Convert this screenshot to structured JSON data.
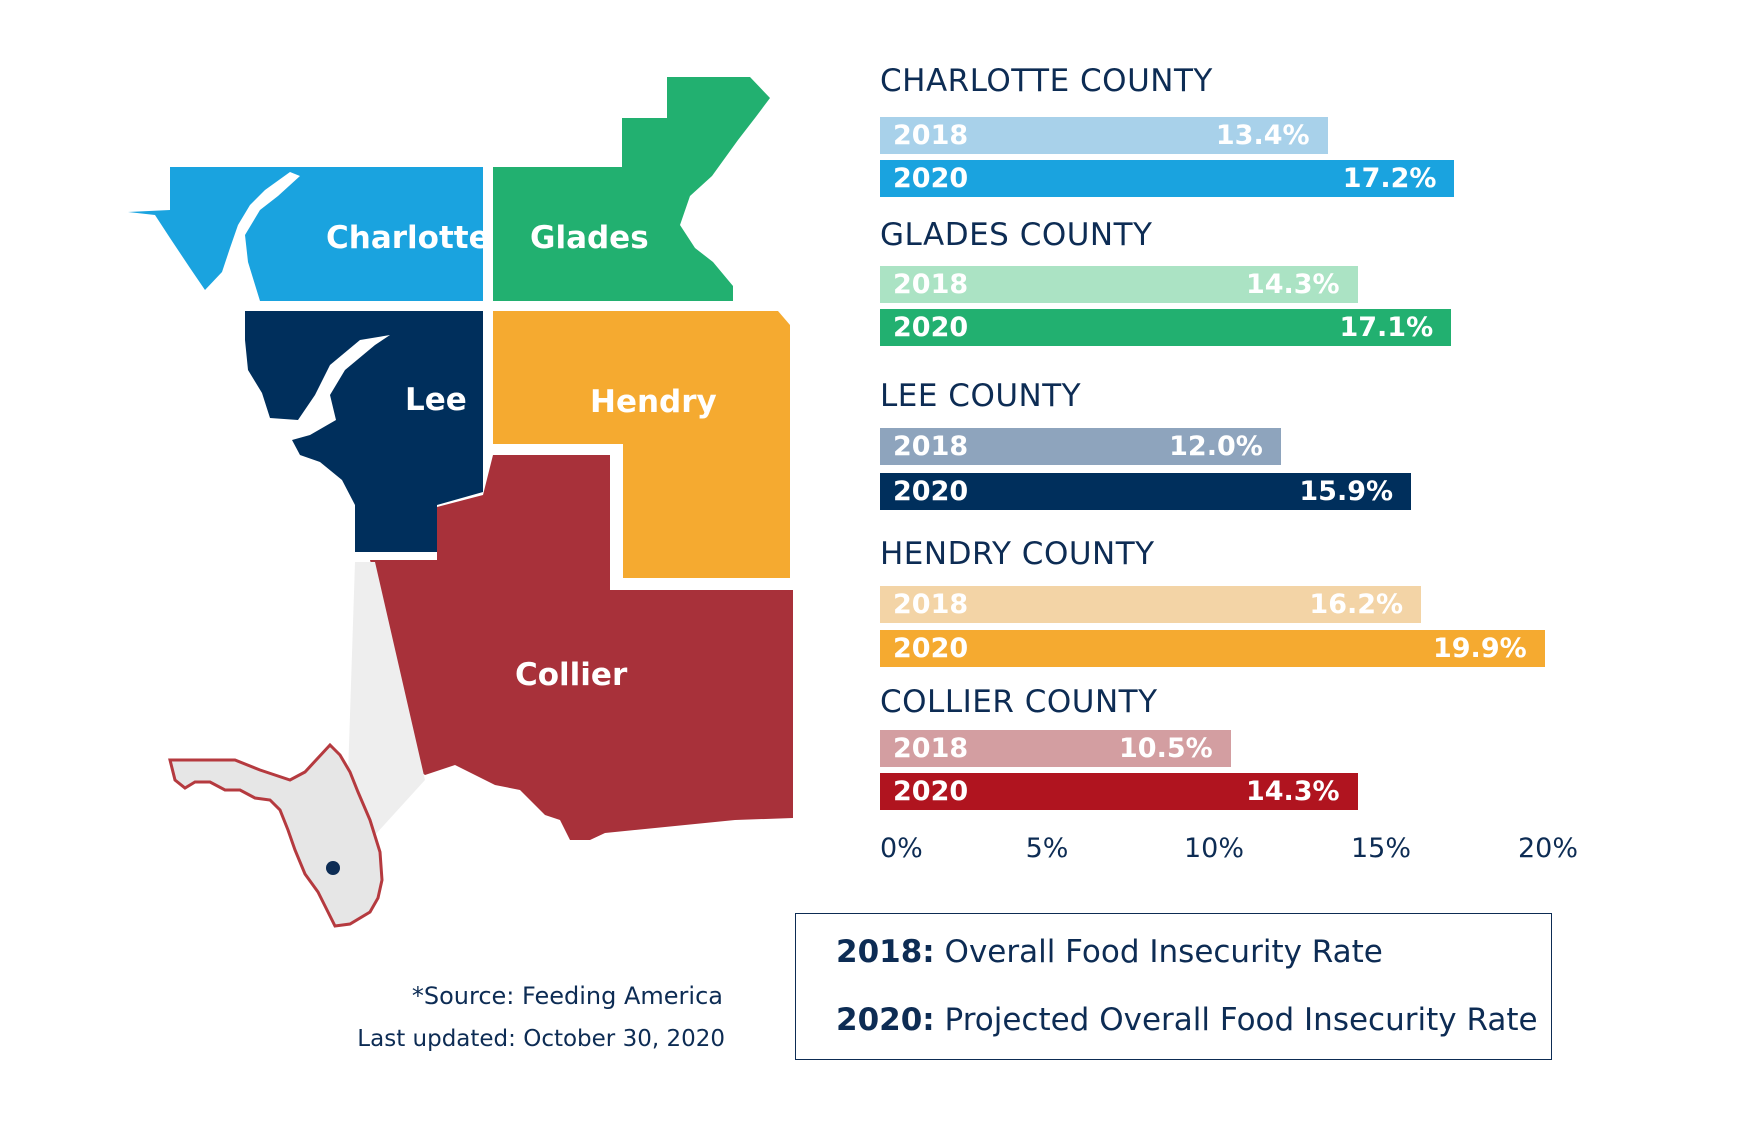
{
  "map": {
    "labels": {
      "charlotte": "Charlotte",
      "glades": "Glades",
      "lee": "Lee",
      "hendry": "Hendry",
      "collier": "Collier"
    },
    "colors": {
      "charlotte": "#1aa3df",
      "glades": "#22b070",
      "lee": "#002f5c",
      "hendry": "#f5aa30",
      "collier": "#a8313a",
      "florida_fill": "#e6e6e6",
      "florida_outline": "#b53a3f",
      "marker": "#0d2c54"
    }
  },
  "chart_data": {
    "type": "bar",
    "orientation": "horizontal",
    "categories": [
      "CHARLOTTE COUNTY",
      "GLADES COUNTY",
      "LEE COUNTY",
      "HENDRY COUNTY",
      "COLLIER COUNTY"
    ],
    "series": [
      {
        "name": "2018",
        "values": [
          13.4,
          14.3,
          12.0,
          16.2,
          10.5
        ],
        "labels": [
          "13.4%",
          "14.3%",
          "12.0%",
          "16.2%",
          "10.5%"
        ],
        "colors": [
          "#a8d1ea",
          "#abe3c4",
          "#8ea4bd",
          "#f3d4a6",
          "#d39ea1"
        ]
      },
      {
        "name": "2020",
        "values": [
          17.2,
          17.1,
          15.9,
          19.9,
          14.3
        ],
        "labels": [
          "17.2%",
          "17.1%",
          "15.9%",
          "19.9%",
          "14.3%"
        ],
        "colors": [
          "#1aa3df",
          "#22b070",
          "#002f5c",
          "#f5aa30",
          "#b0141f"
        ]
      }
    ],
    "xlim": [
      0,
      20
    ],
    "ticks": [
      "0%",
      "5%",
      "10%",
      "15%",
      "20%"
    ],
    "tick_values": [
      0,
      5,
      10,
      15,
      20
    ],
    "grid": false
  },
  "legend": {
    "row1_key": "2018:",
    "row1_text": "Overall Food Insecurity Rate",
    "row2_key": "2020:",
    "row2_text": "Projected Overall Food Insecurity Rate"
  },
  "source": "*Source: Feeding America",
  "updated": "Last updated: October 30, 2020"
}
